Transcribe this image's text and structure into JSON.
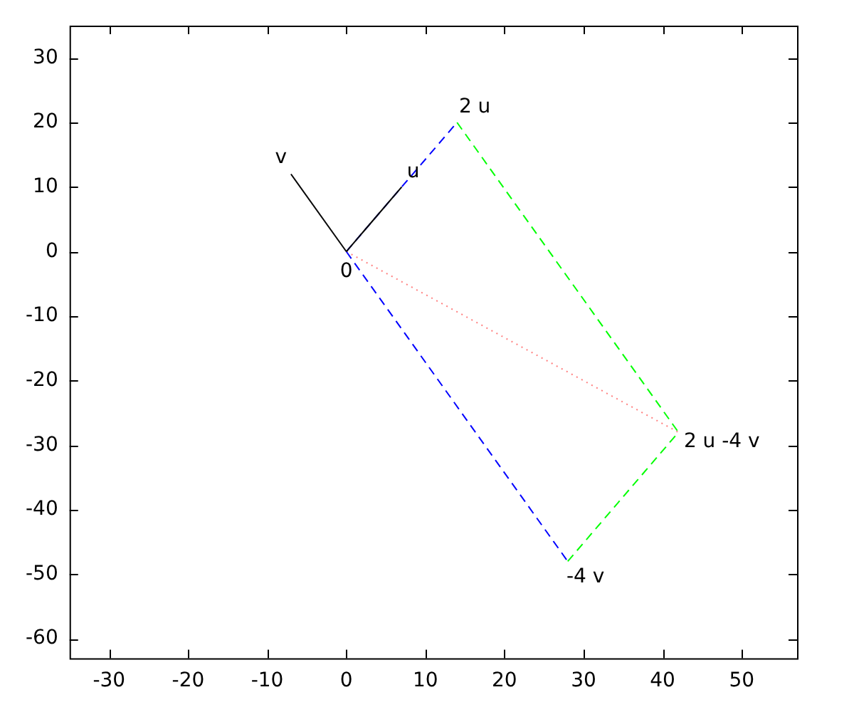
{
  "chart_data": {
    "type": "line",
    "xlim": [
      -35,
      57
    ],
    "ylim": [
      -63,
      35
    ],
    "xticks": [
      -30,
      -20,
      -10,
      0,
      10,
      20,
      30,
      40,
      50
    ],
    "yticks": [
      -60,
      -50,
      -40,
      -30,
      -20,
      -10,
      0,
      10,
      20,
      30
    ],
    "grid": false,
    "legend": false,
    "marker": "none",
    "series": [
      {
        "x": [
          0,
          7
        ],
        "values": [
          0,
          10
        ],
        "color": "#000000",
        "line_style": "solid"
      },
      {
        "x": [
          0,
          -7
        ],
        "values": [
          0,
          12
        ],
        "color": "#000000",
        "line_style": "solid"
      },
      {
        "x": [
          0,
          14
        ],
        "values": [
          0,
          20
        ],
        "color": "#0000ff",
        "line_style": "dashed"
      },
      {
        "x": [
          0,
          28
        ],
        "values": [
          0,
          -48
        ],
        "color": "#0000ff",
        "line_style": "dashed"
      },
      {
        "x": [
          14,
          42
        ],
        "values": [
          20,
          -28
        ],
        "color": "#00ff00",
        "line_style": "dashed"
      },
      {
        "x": [
          28,
          42
        ],
        "values": [
          -48,
          -28
        ],
        "color": "#00ff00",
        "line_style": "dashed"
      },
      {
        "x": [
          0,
          42
        ],
        "values": [
          0,
          -28
        ],
        "color": "#ff8080",
        "line_style": "dotted"
      }
    ],
    "annotations": [
      {
        "text": "0",
        "x": 0,
        "y": 0
      },
      {
        "text": "u",
        "x": 7,
        "y": 10
      },
      {
        "text": "v",
        "x": -7,
        "y": 12
      },
      {
        "text": "2 u",
        "x": 14,
        "y": 20
      },
      {
        "text": "-4 v",
        "x": 28,
        "y": -48
      },
      {
        "text": "2 u -4 v",
        "x": 42,
        "y": -28
      }
    ]
  }
}
